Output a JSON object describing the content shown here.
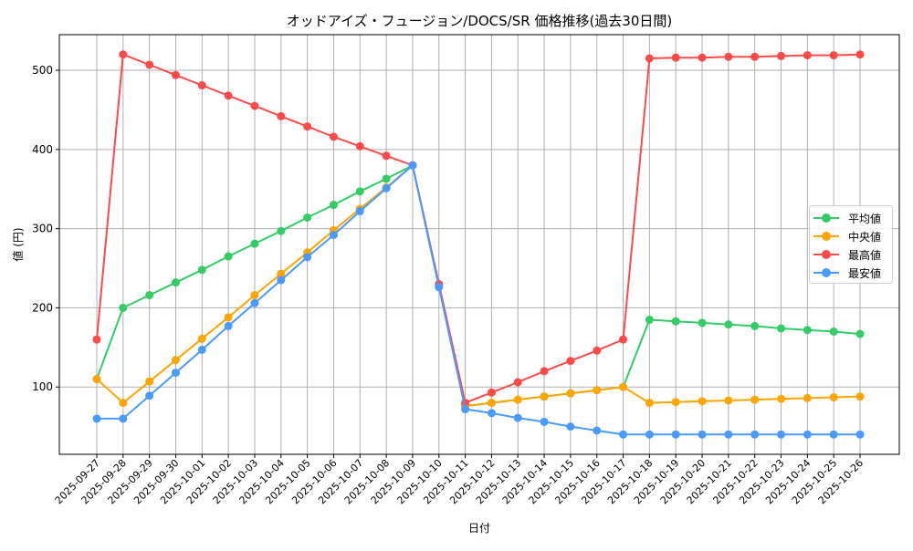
{
  "chart_data": {
    "type": "line",
    "title": "オッドアイズ・フュージョン/DOCS/SR 価格推移(過去30日間)",
    "xlabel": "日付",
    "ylabel": "値 (円)",
    "ylim": [
      15,
      545
    ],
    "yticks": [
      100,
      200,
      300,
      400,
      500
    ],
    "grid": true,
    "legend_position": "center right",
    "x": [
      "2025-09-27",
      "2025-09-28",
      "2025-09-29",
      "2025-09-30",
      "2025-10-01",
      "2025-10-02",
      "2025-10-03",
      "2025-10-04",
      "2025-10-05",
      "2025-10-06",
      "2025-10-07",
      "2025-10-08",
      "2025-10-09",
      "2025-10-10",
      "2025-10-11",
      "2025-10-12",
      "2025-10-13",
      "2025-10-14",
      "2025-10-15",
      "2025-10-16",
      "2025-10-17",
      "2025-10-18",
      "2025-10-19",
      "2025-10-20",
      "2025-10-21",
      "2025-10-22",
      "2025-10-23",
      "2025-10-24",
      "2025-10-25",
      "2025-10-26"
    ],
    "series": [
      {
        "name": "平均値",
        "color": "#33cc66",
        "values": [
          110,
          200,
          216,
          232,
          248,
          265,
          281,
          297,
          314,
          330,
          347,
          363,
          380,
          228,
          76,
          80,
          84,
          88,
          92,
          96,
          100,
          185,
          183,
          181,
          179,
          177,
          174,
          172,
          170,
          167
        ]
      },
      {
        "name": "中央値",
        "color": "#ffa500",
        "values": [
          110,
          80,
          107,
          134,
          161,
          188,
          216,
          243,
          270,
          298,
          325,
          352,
          380,
          228,
          76,
          80,
          84,
          88,
          92,
          96,
          100,
          80,
          81,
          82,
          83,
          84,
          85,
          86,
          87,
          88
        ]
      },
      {
        "name": "最高値",
        "color": "#ff4a4a",
        "values": [
          160,
          520,
          507,
          494,
          481,
          468,
          455,
          442,
          429,
          416,
          404,
          392,
          380,
          230,
          80,
          93,
          106,
          120,
          133,
          146,
          160,
          515,
          516,
          516,
          517,
          517,
          518,
          519,
          519,
          520
        ]
      },
      {
        "name": "最安値",
        "color": "#4a9aff",
        "values": [
          60,
          60,
          89,
          118,
          147,
          177,
          206,
          235,
          264,
          292,
          322,
          351,
          380,
          226,
          72,
          67,
          61,
          56,
          50,
          45,
          40,
          40,
          40,
          40,
          40,
          40,
          40,
          40,
          40,
          40
        ]
      }
    ]
  }
}
